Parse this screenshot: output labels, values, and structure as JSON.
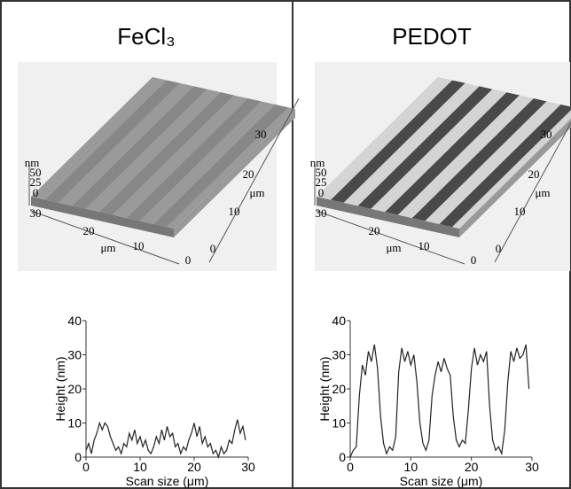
{
  "panels": [
    {
      "title": "FeCl₃",
      "afm_labels": [
        "nm",
        "50",
        "25",
        "0",
        "30",
        "20",
        "μm",
        "10",
        "0",
        "30",
        "20",
        "μm",
        "10",
        "0"
      ]
    },
    {
      "title": "PEDOT",
      "afm_labels": [
        "nm",
        "50",
        "25",
        "0",
        "30",
        "20",
        "μm",
        "10",
        "0",
        "30",
        "20",
        "μm",
        "10",
        "0"
      ]
    }
  ],
  "chart_data": [
    {
      "type": "line",
      "xlabel": "Scan size (μm)",
      "ylabel": "Height (nm)",
      "x": [
        0,
        0.5,
        1,
        1.5,
        2,
        2.5,
        3,
        3.5,
        4,
        4.5,
        5,
        5.5,
        6,
        6.5,
        7,
        7.5,
        8,
        8.5,
        9,
        9.5,
        10,
        10.5,
        11,
        11.5,
        12,
        12.5,
        13,
        13.5,
        14,
        14.5,
        15,
        15.5,
        16,
        16.5,
        17,
        17.5,
        18,
        18.5,
        19,
        19.5,
        20,
        20.5,
        21,
        21.5,
        22,
        22.5,
        23,
        23.5,
        24,
        24.5,
        25,
        25.5,
        26,
        26.5,
        27,
        27.5,
        28,
        28.5,
        29,
        29.5
      ],
      "series": [
        {
          "color": "#222222",
          "values": [
            2,
            4,
            1,
            5,
            7,
            10,
            8,
            10,
            9,
            6,
            4,
            2,
            3,
            1,
            4,
            3,
            7,
            5,
            8,
            4,
            6,
            3,
            5,
            2,
            1,
            3,
            6,
            4,
            8,
            5,
            9,
            6,
            7,
            3,
            4,
            1,
            3,
            2,
            5,
            7,
            10,
            6,
            9,
            4,
            6,
            3,
            4,
            1,
            2,
            0,
            3,
            1,
            2,
            5,
            4,
            8,
            11,
            7,
            9,
            5
          ]
        }
      ],
      "xlim": [
        0,
        30
      ],
      "ylim": [
        0,
        40
      ],
      "xticks": [
        0,
        10,
        20,
        30
      ],
      "yticks": [
        0,
        10,
        20,
        30,
        40
      ]
    },
    {
      "type": "line",
      "xlabel": "Scan size (μm)",
      "ylabel": "Height (nm)",
      "x": [
        0,
        0.5,
        1,
        1.5,
        2,
        2.5,
        3,
        3.5,
        4,
        4.5,
        5,
        5.5,
        6,
        6.5,
        7,
        7.5,
        8,
        8.5,
        9,
        9.5,
        10,
        10.5,
        11,
        11.5,
        12,
        12.5,
        13,
        13.5,
        14,
        14.5,
        15,
        15.5,
        16,
        16.5,
        17,
        17.5,
        18,
        18.5,
        19,
        19.5,
        20,
        20.5,
        21,
        21.5,
        22,
        22.5,
        23,
        23.5,
        24,
        24.5,
        25,
        25.5,
        26,
        26.5,
        27,
        27.5,
        28,
        28.5,
        29,
        29.5
      ],
      "series": [
        {
          "color": "#222222",
          "values": [
            0,
            2,
            3,
            18,
            27,
            24,
            31,
            28,
            33,
            26,
            12,
            4,
            1,
            3,
            2,
            6,
            25,
            32,
            28,
            31,
            27,
            30,
            22,
            10,
            4,
            2,
            5,
            18,
            24,
            28,
            25,
            29,
            26,
            24,
            12,
            5,
            3,
            5,
            4,
            14,
            26,
            32,
            27,
            30,
            28,
            31,
            15,
            5,
            2,
            3,
            1,
            8,
            22,
            31,
            28,
            32,
            29,
            30,
            33,
            20
          ]
        }
      ],
      "xlim": [
        0,
        30
      ],
      "ylim": [
        0,
        40
      ],
      "xticks": [
        0,
        10,
        20,
        30
      ],
      "yticks": [
        0,
        10,
        20,
        30,
        40
      ]
    }
  ]
}
